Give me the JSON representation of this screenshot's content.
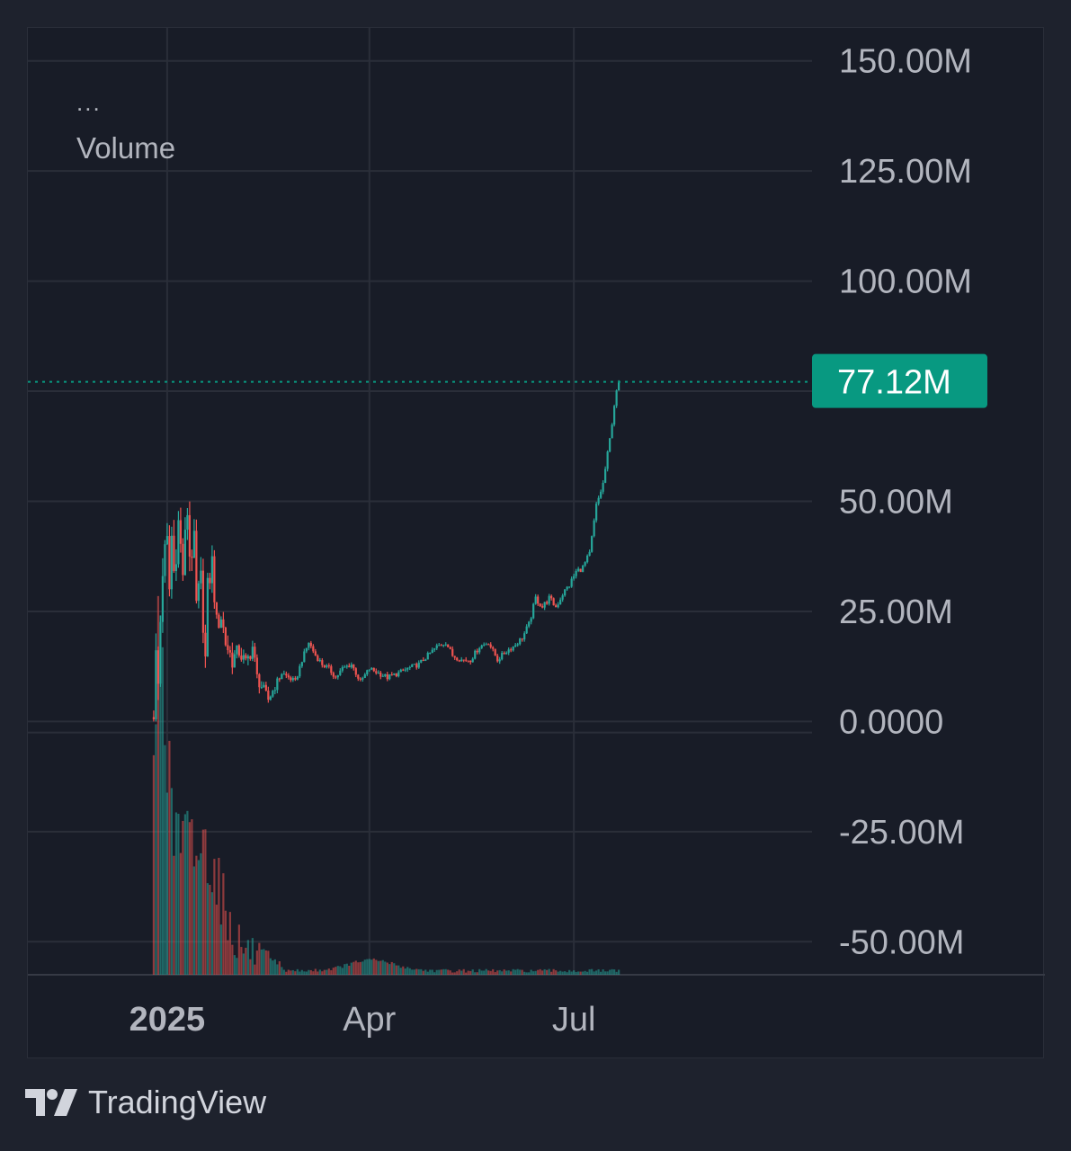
{
  "legend": {
    "menu_glyph": "...",
    "title": "Volume"
  },
  "brand": {
    "name": "TradingView",
    "icon": "tradingview-logo-icon"
  },
  "colors": {
    "background": "#181c27",
    "grid": "#2a2e39",
    "text": "#b2b5be",
    "up": "#26a69a",
    "down": "#ef5350",
    "last_price_label": "#089981"
  },
  "chart_data": {
    "type": "candlestick",
    "y_axis": {
      "ticks": [
        "150.00M",
        "125.00M",
        "100.00M",
        "50.00M",
        "25.00M",
        "0.0000",
        "-25.00M",
        "-50.00M"
      ],
      "tick_values": [
        150,
        125,
        100,
        50,
        25,
        0,
        -25,
        -50
      ],
      "range_millions": [
        -57.5,
        157.5
      ]
    },
    "x_axis": {
      "ticks": [
        "2025",
        "Apr",
        "Jul"
      ],
      "tick_dates": [
        "2025-01-01",
        "2025-04-01",
        "2025-07-01"
      ],
      "range": [
        "2024-10-31",
        "2025-10-15"
      ]
    },
    "last_value": {
      "label": "77.12M",
      "value_millions": 77.12
    },
    "close_series_millions": [
      [
        "2024-12-26",
        1
      ],
      [
        "2024-12-27",
        14
      ],
      [
        "2024-12-28",
        8
      ],
      [
        "2024-12-29",
        23
      ],
      [
        "2024-12-30",
        35
      ],
      [
        "2025-01-01",
        40
      ],
      [
        "2025-01-02",
        30
      ],
      [
        "2025-01-03",
        42
      ],
      [
        "2025-01-04",
        34
      ],
      [
        "2025-01-06",
        45
      ],
      [
        "2025-01-08",
        34
      ],
      [
        "2025-01-10",
        48
      ],
      [
        "2025-01-11",
        38
      ],
      [
        "2025-01-13",
        40
      ],
      [
        "2025-01-14",
        26
      ],
      [
        "2025-01-16",
        32
      ],
      [
        "2025-01-18",
        14
      ],
      [
        "2025-01-19",
        30
      ],
      [
        "2025-01-21",
        36
      ],
      [
        "2025-01-23",
        22
      ],
      [
        "2025-01-25",
        24
      ],
      [
        "2025-01-27",
        18
      ],
      [
        "2025-01-30",
        14
      ],
      [
        "2025-02-02",
        16
      ],
      [
        "2025-02-05",
        13
      ],
      [
        "2025-02-08",
        17
      ],
      [
        "2025-02-10",
        10
      ],
      [
        "2025-02-13",
        7
      ],
      [
        "2025-02-15",
        5
      ],
      [
        "2025-02-18",
        8
      ],
      [
        "2025-02-21",
        11
      ],
      [
        "2025-02-24",
        10
      ],
      [
        "2025-02-27",
        9
      ],
      [
        "2025-03-02",
        14
      ],
      [
        "2025-03-05",
        18
      ],
      [
        "2025-03-08",
        15
      ],
      [
        "2025-03-11",
        13
      ],
      [
        "2025-03-14",
        12
      ],
      [
        "2025-03-17",
        10
      ],
      [
        "2025-03-20",
        12
      ],
      [
        "2025-03-24",
        13
      ],
      [
        "2025-03-28",
        9
      ],
      [
        "2025-04-01",
        12
      ],
      [
        "2025-04-05",
        11
      ],
      [
        "2025-04-09",
        10
      ],
      [
        "2025-04-14",
        11
      ],
      [
        "2025-04-18",
        12
      ],
      [
        "2025-04-23",
        13
      ],
      [
        "2025-04-27",
        15
      ],
      [
        "2025-05-01",
        17
      ],
      [
        "2025-05-05",
        18
      ],
      [
        "2025-05-08",
        15
      ],
      [
        "2025-05-12",
        14
      ],
      [
        "2025-05-16",
        14
      ],
      [
        "2025-05-20",
        17
      ],
      [
        "2025-05-24",
        18
      ],
      [
        "2025-05-28",
        14
      ],
      [
        "2025-06-01",
        16
      ],
      [
        "2025-06-04",
        17
      ],
      [
        "2025-06-08",
        19
      ],
      [
        "2025-06-11",
        22
      ],
      [
        "2025-06-14",
        28
      ],
      [
        "2025-06-17",
        26
      ],
      [
        "2025-06-20",
        28
      ],
      [
        "2025-06-23",
        26
      ],
      [
        "2025-06-26",
        29
      ],
      [
        "2025-06-29",
        31
      ],
      [
        "2025-07-02",
        34
      ],
      [
        "2025-07-05",
        35
      ],
      [
        "2025-07-08",
        38
      ],
      [
        "2025-07-11",
        49
      ],
      [
        "2025-07-14",
        54
      ],
      [
        "2025-07-17",
        64
      ],
      [
        "2025-07-19",
        72
      ],
      [
        "2025-07-21",
        77.12
      ]
    ],
    "volume_peak_dates": [
      "2024-12-29",
      "2025-01-02",
      "2025-01-19",
      "2025-04-02"
    ]
  }
}
